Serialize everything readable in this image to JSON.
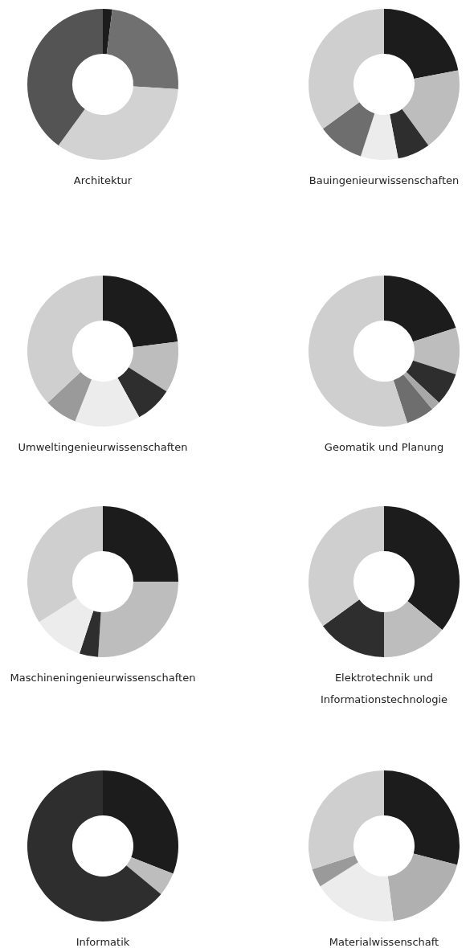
{
  "chart_data": [
    {
      "type": "donut",
      "title": "Architektur",
      "categories": [
        null,
        null,
        null,
        null
      ],
      "values": [
        2,
        24,
        34,
        40
      ],
      "colors": [
        "#1c1c1c",
        "#707070",
        "#d2d2d2",
        "#545454"
      ]
    },
    {
      "type": "donut",
      "title": "Bauingenieurwissenschaften",
      "categories": [
        null,
        null,
        null,
        null,
        null,
        null
      ],
      "values": [
        22,
        18,
        7,
        8,
        10,
        35
      ],
      "colors": [
        "#1c1c1c",
        "#bdbdbd",
        "#2e2e2e",
        "#ececec",
        "#6e6e6e",
        "#cfcfcf"
      ]
    },
    {
      "type": "donut",
      "title": "Umweltingenieurwissenschaften",
      "categories": [
        null,
        null,
        null,
        null,
        null,
        null
      ],
      "values": [
        23,
        11,
        8,
        14,
        7,
        37
      ],
      "colors": [
        "#1c1c1c",
        "#bdbdbd",
        "#2e2e2e",
        "#ececec",
        "#9a9a9a",
        "#cfcfcf"
      ]
    },
    {
      "type": "donut",
      "title": "Geomatik und Planung",
      "categories": [
        null,
        null,
        null,
        null,
        null,
        null
      ],
      "values": [
        20,
        10,
        7,
        2,
        6,
        55
      ],
      "colors": [
        "#1c1c1c",
        "#bdbdbd",
        "#2e2e2e",
        "#a8a8a8",
        "#6e6e6e",
        "#cfcfcf"
      ]
    },
    {
      "type": "donut",
      "title": "Maschineningenieurwissenschaften",
      "categories": [
        null,
        null,
        null,
        null,
        null
      ],
      "values": [
        25,
        26,
        4,
        11,
        34
      ],
      "colors": [
        "#1c1c1c",
        "#bdbdbd",
        "#2e2e2e",
        "#ececec",
        "#cfcfcf"
      ]
    },
    {
      "type": "donut",
      "title": "Elektrotechnik und Informationstechnologie",
      "categories": [
        null,
        null,
        null,
        null
      ],
      "values": [
        36,
        14,
        15,
        35
      ],
      "colors": [
        "#1c1c1c",
        "#bdbdbd",
        "#2e2e2e",
        "#cfcfcf"
      ]
    },
    {
      "type": "donut",
      "title": "Informatik",
      "categories": [
        null,
        null,
        null
      ],
      "values": [
        31,
        5,
        64
      ],
      "colors": [
        "#1c1c1c",
        "#bdbdbd",
        "#2e2e2e"
      ]
    },
    {
      "type": "donut",
      "title": "Materialwissenschaft",
      "categories": [
        null,
        null,
        null,
        null,
        null
      ],
      "values": [
        29,
        19,
        18,
        4,
        30
      ],
      "colors": [
        "#1c1c1c",
        "#b0b0b0",
        "#ececec",
        "#9a9a9a",
        "#cfcfcf"
      ]
    }
  ]
}
